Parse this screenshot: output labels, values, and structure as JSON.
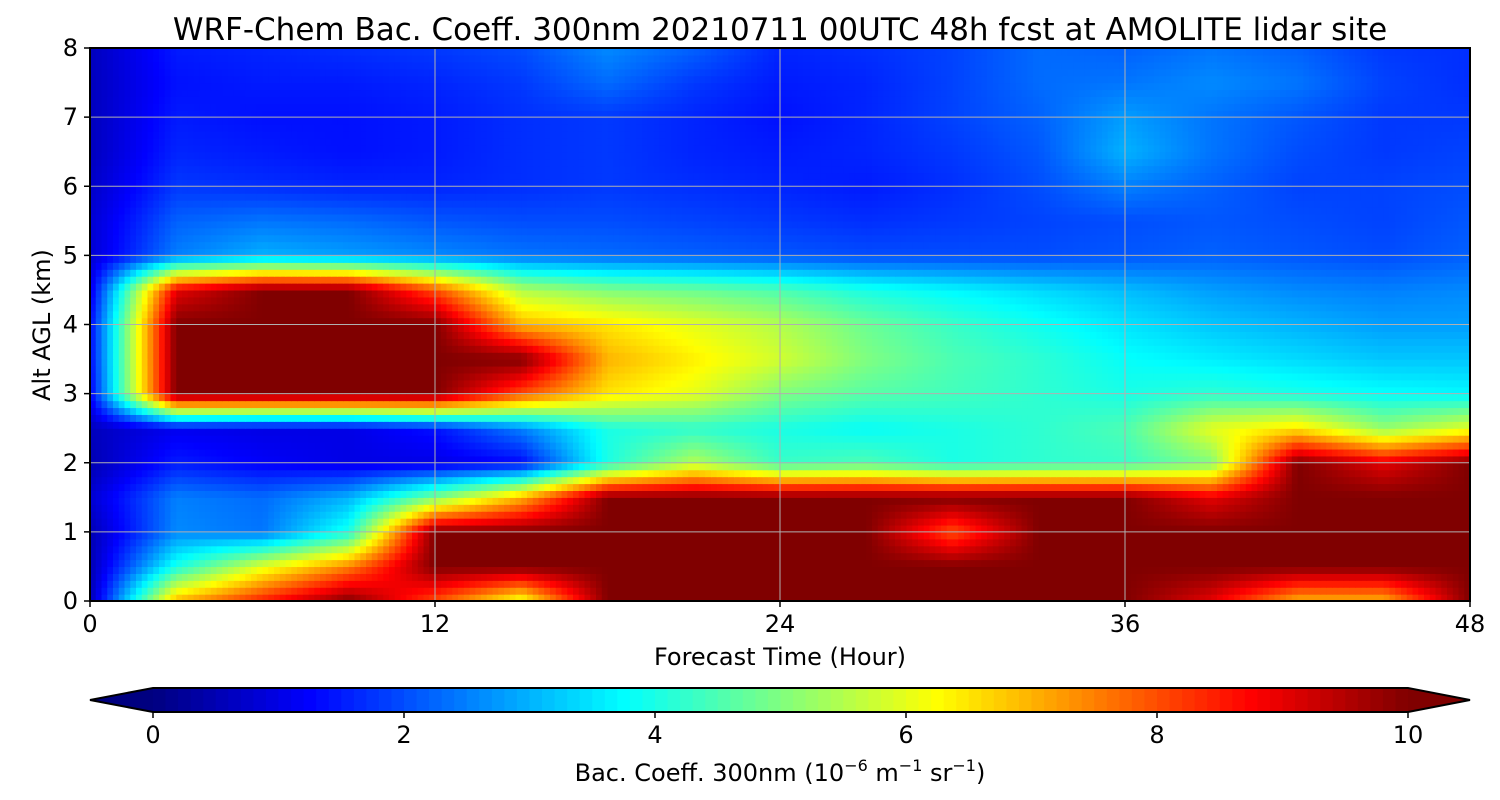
{
  "chart_data": {
    "type": "heatmap",
    "title": "WRF-Chem Bac. Coeff. 300nm  20210711 00UTC 48h fcst at AMOLITE lidar site",
    "xlabel": "Forecast Time (Hour)",
    "ylabel": "Alt AGL (km)",
    "xlim": [
      0,
      48
    ],
    "ylim": [
      0,
      8
    ],
    "xticks": [
      0,
      12,
      24,
      36,
      48
    ],
    "yticks": [
      0,
      1,
      2,
      3,
      4,
      5,
      6,
      7,
      8
    ],
    "grid": true,
    "colormap": "jet",
    "colorbar": {
      "label_main": "Bac. Coeff. 300nm  (10",
      "label_exp1": "−6",
      "label_mid": " m",
      "label_exp2": "−1",
      "label_mid2": " sr",
      "label_exp3": "−1",
      "label_end": ")",
      "ticks": [
        0,
        2,
        4,
        6,
        8,
        10
      ],
      "range": [
        0,
        10
      ],
      "extend": "both",
      "orientation": "horizontal"
    },
    "x": [
      0,
      3,
      6,
      9,
      12,
      15,
      18,
      21,
      24,
      27,
      30,
      33,
      36,
      39,
      42,
      45,
      48
    ],
    "y": [
      0,
      0.5,
      1,
      1.5,
      2,
      2.5,
      3,
      3.5,
      4,
      4.5,
      5,
      5.5,
      6,
      6.5,
      7,
      7.5,
      8
    ],
    "z": [
      [
        0.5,
        7,
        8.5,
        10,
        8,
        6,
        10,
        10,
        10,
        10,
        10,
        10,
        10,
        9,
        7,
        7,
        10
      ],
      [
        0.5,
        4,
        6,
        7.5,
        10,
        10,
        10,
        10,
        10,
        10,
        10,
        10,
        10,
        10,
        10,
        10,
        10
      ],
      [
        0.5,
        2.6,
        2.4,
        4,
        10,
        10,
        10,
        10,
        10,
        10,
        8,
        10,
        10,
        10,
        10,
        10,
        10
      ],
      [
        0.8,
        2.5,
        2.3,
        3,
        5,
        7,
        10,
        10,
        10,
        10,
        10,
        10,
        10,
        9,
        10,
        10,
        10
      ],
      [
        0.5,
        1.5,
        1.2,
        1.0,
        1.0,
        1.3,
        4,
        5.5,
        4.3,
        4.5,
        4,
        4.2,
        4.3,
        5,
        10,
        9,
        10
      ],
      [
        0.6,
        1.1,
        1.0,
        1.0,
        1.4,
        2.5,
        4,
        4.2,
        4.0,
        3.8,
        4,
        4.2,
        4.5,
        6,
        6.5,
        5.2,
        6
      ],
      [
        1.2,
        10,
        10,
        10,
        10,
        8,
        6.5,
        6.0,
        5.0,
        4.6,
        4.4,
        4.2,
        4.0,
        4.2,
        4.0,
        3.8,
        3.7
      ],
      [
        1.3,
        10,
        10,
        10,
        10,
        10,
        7,
        6.4,
        5.8,
        5.0,
        4.5,
        4.2,
        3.8,
        3.6,
        3.4,
        3.2,
        3.2
      ],
      [
        1.3,
        10,
        10,
        10,
        10,
        7,
        6.5,
        6.0,
        5.5,
        4.8,
        4.3,
        3.9,
        3.5,
        3.2,
        3.0,
        2.8,
        2.8
      ],
      [
        1.0,
        9,
        10,
        10,
        8,
        5.5,
        5.0,
        4.8,
        4.5,
        4.0,
        3.7,
        3.4,
        3.1,
        2.8,
        2.6,
        2.5,
        2.6
      ],
      [
        0.8,
        2.5,
        3.0,
        2.8,
        2.6,
        2.4,
        2.3,
        2.2,
        2.1,
        2.0,
        2.0,
        2.0,
        2.1,
        2.2,
        2.1,
        2.0,
        2.2
      ],
      [
        0.8,
        2.2,
        2.4,
        2.3,
        2.1,
        2.0,
        2.0,
        1.9,
        1.8,
        1.7,
        1.8,
        1.9,
        2.0,
        2.1,
        2.0,
        1.9,
        2.1
      ],
      [
        0.7,
        1.8,
        1.7,
        1.6,
        1.6,
        1.7,
        1.8,
        1.7,
        1.6,
        1.5,
        1.7,
        2.0,
        2.5,
        2.2,
        1.9,
        1.9,
        2.0
      ],
      [
        0.6,
        1.6,
        1.5,
        1.4,
        1.5,
        1.7,
        1.8,
        1.6,
        1.5,
        1.6,
        1.8,
        2.1,
        3.0,
        2.4,
        2.0,
        1.8,
        1.9
      ],
      [
        0.6,
        1.5,
        1.4,
        1.4,
        1.5,
        1.7,
        1.8,
        1.6,
        1.4,
        1.6,
        1.9,
        2.2,
        2.8,
        2.4,
        2.1,
        1.8,
        1.8
      ],
      [
        0.6,
        1.4,
        1.5,
        1.5,
        1.6,
        1.8,
        2.3,
        1.8,
        1.5,
        1.6,
        1.9,
        2.3,
        2.4,
        2.6,
        2.4,
        1.9,
        1.7
      ],
      [
        0.6,
        1.5,
        1.6,
        1.7,
        1.8,
        2.0,
        2.6,
        2.2,
        1.6,
        1.7,
        1.9,
        2.3,
        2.2,
        2.4,
        2.2,
        1.8,
        1.7
      ]
    ]
  }
}
